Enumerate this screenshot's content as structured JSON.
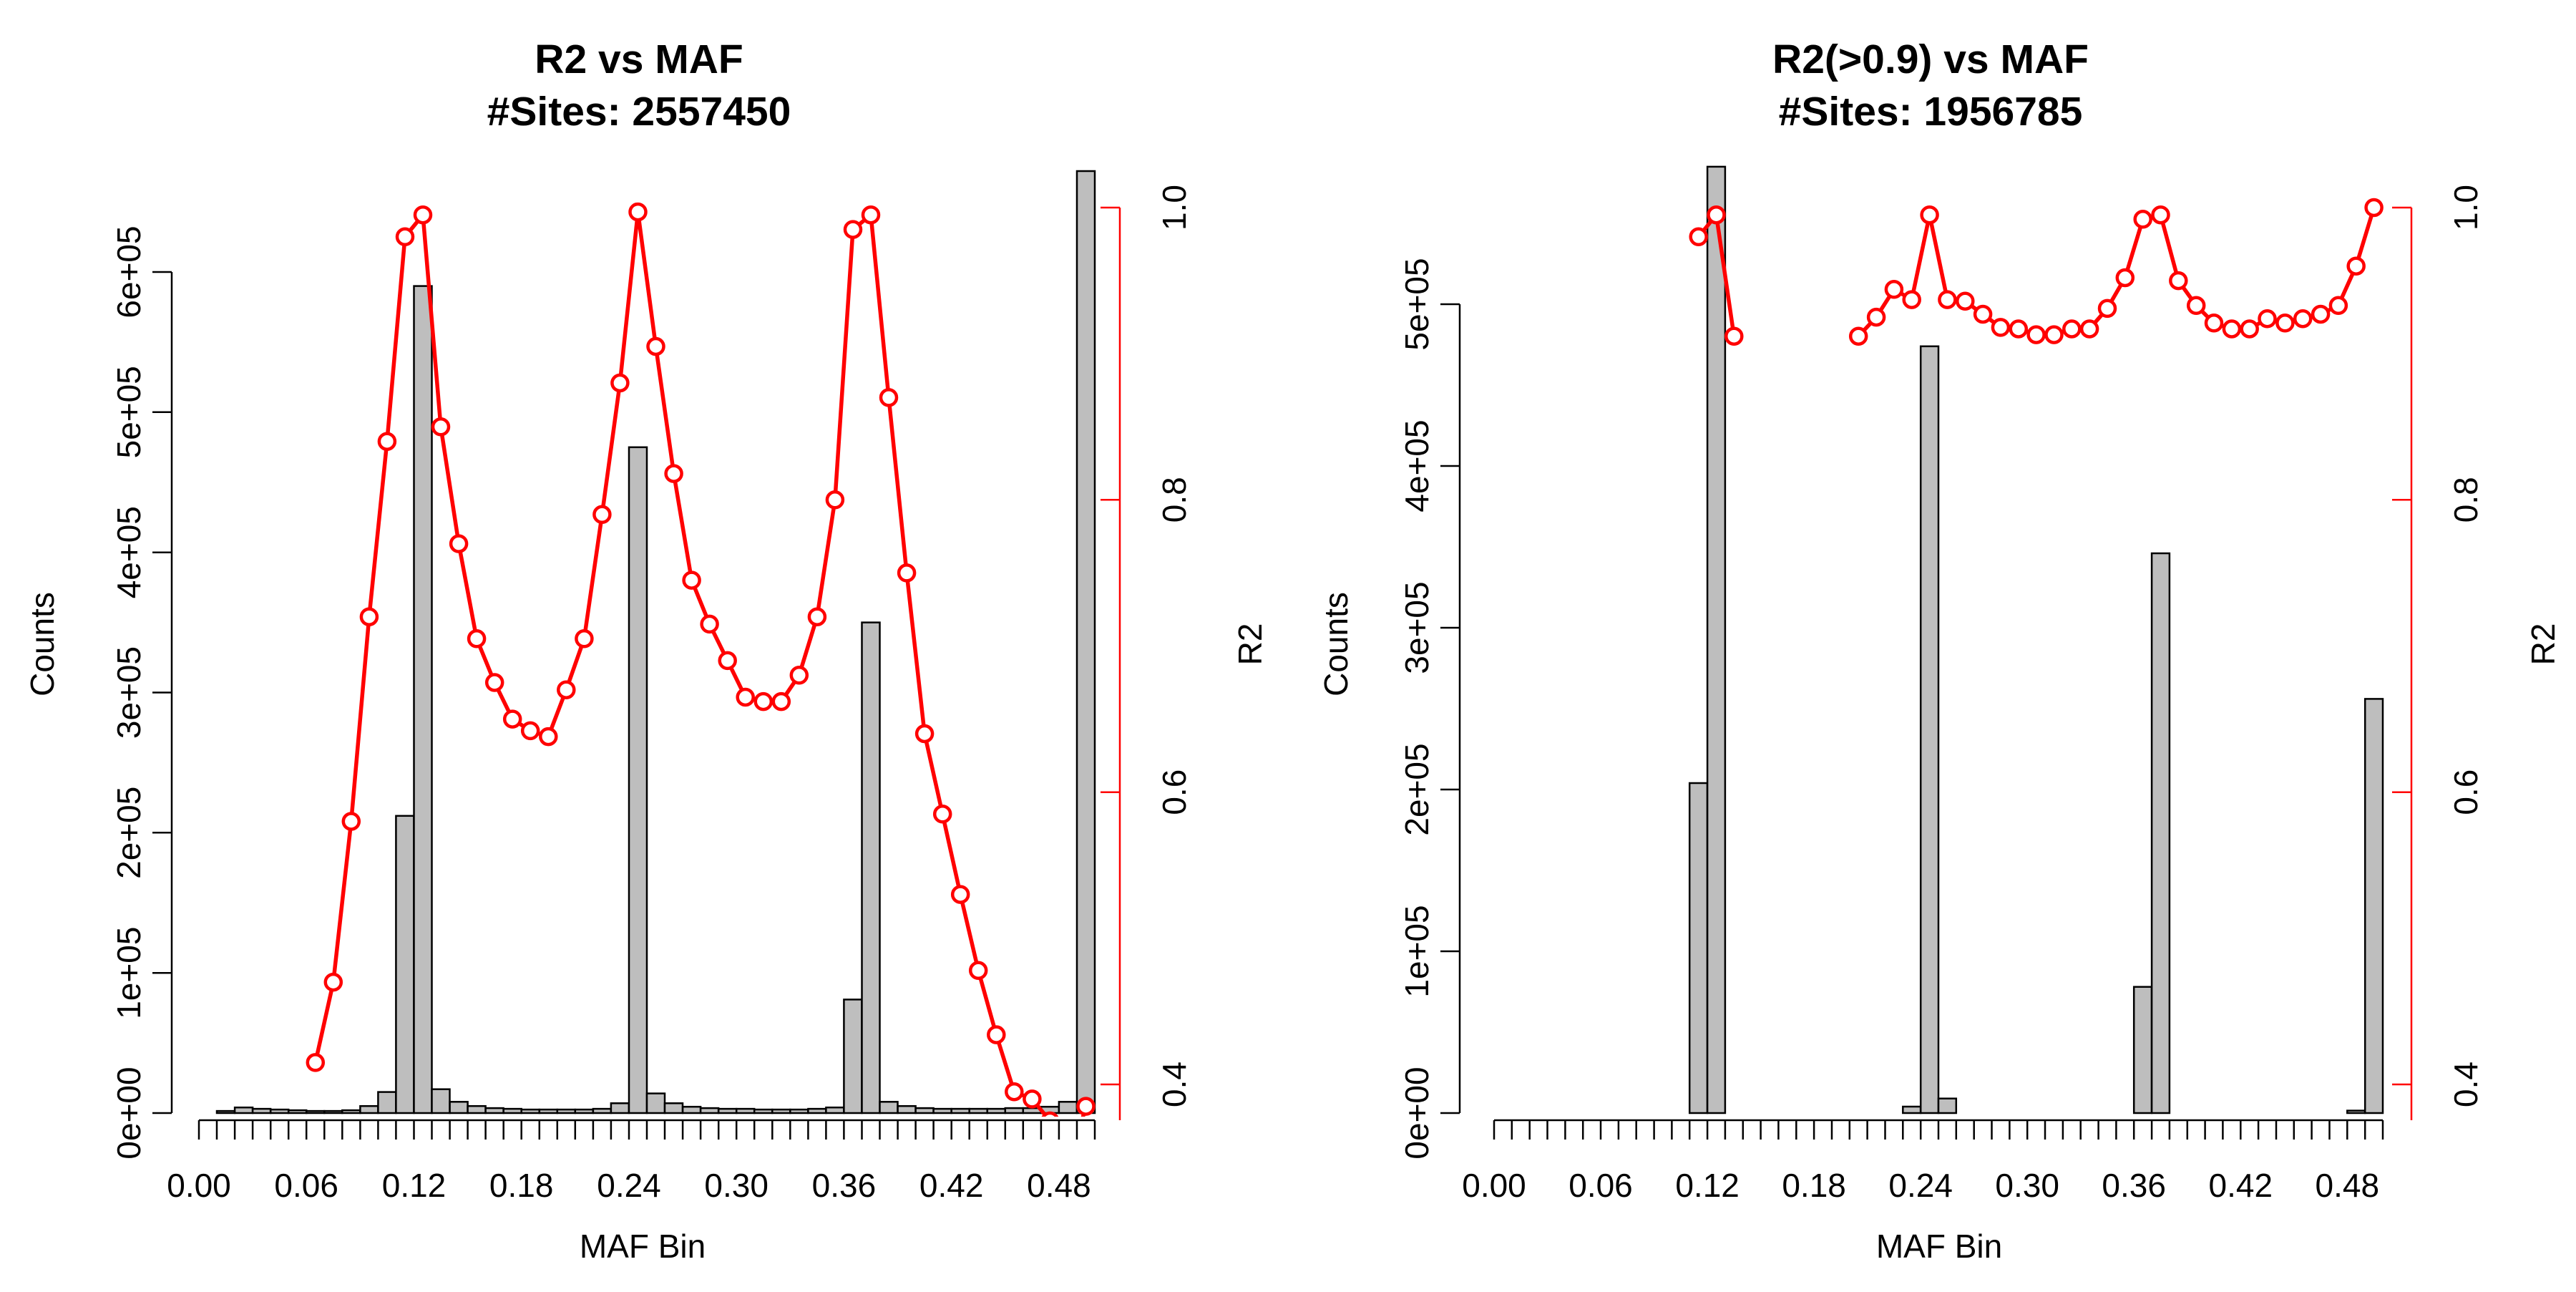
{
  "chart_data": [
    {
      "type": "bar",
      "title": "R2 vs MAF",
      "subtitle": "#Sites:  2557450",
      "xlabel": "MAF Bin",
      "ylabel": "Counts",
      "ylabel_right": "R2",
      "xlim": [
        0,
        0.5
      ],
      "ylim": [
        0,
        660000
      ],
      "y2lim": [
        0.38,
        1.0
      ],
      "x_ticks": [
        0.0,
        0.06,
        0.12,
        0.18,
        0.24,
        0.3,
        0.36,
        0.42,
        0.48
      ],
      "x_tick_labels": [
        "0.00",
        "0.06",
        "0.12",
        "0.18",
        "0.24",
        "0.30",
        "0.36",
        "0.42",
        "0.48"
      ],
      "y_ticks": [
        0,
        100000,
        200000,
        300000,
        400000,
        500000,
        600000
      ],
      "y_tick_labels": [
        "0e+00",
        "1e+05",
        "2e+05",
        "3e+05",
        "4e+05",
        "5e+05",
        "6e+05"
      ],
      "y2_ticks": [
        0.4,
        0.6,
        0.8,
        1.0
      ],
      "y2_tick_labels": [
        "0.4",
        "0.6",
        "0.8",
        "1.0"
      ],
      "bin_width": 0.01,
      "bar_color": "#bebebe",
      "line_color": "#ff0000",
      "bars": {
        "name": "Counts",
        "x": [
          0.0,
          0.01,
          0.02,
          0.03,
          0.04,
          0.05,
          0.06,
          0.07,
          0.08,
          0.09,
          0.1,
          0.11,
          0.12,
          0.13,
          0.14,
          0.15,
          0.16,
          0.17,
          0.18,
          0.19,
          0.2,
          0.21,
          0.22,
          0.23,
          0.24,
          0.25,
          0.26,
          0.27,
          0.28,
          0.29,
          0.3,
          0.31,
          0.32,
          0.33,
          0.34,
          0.35,
          0.36,
          0.37,
          0.38,
          0.39,
          0.4,
          0.41,
          0.42,
          0.43,
          0.44,
          0.45,
          0.46,
          0.47,
          0.48,
          0.49
        ],
        "values": [
          0,
          1500,
          4000,
          3000,
          2500,
          2000,
          1500,
          1500,
          2000,
          5000,
          15000,
          212000,
          590000,
          17000,
          8000,
          5000,
          3500,
          3000,
          2500,
          2500,
          2500,
          2500,
          3000,
          7000,
          475000,
          14000,
          7000,
          4500,
          3500,
          3000,
          3000,
          2500,
          2500,
          2500,
          3000,
          4000,
          81000,
          350000,
          8000,
          5000,
          3500,
          3000,
          3000,
          3000,
          3000,
          3500,
          3500,
          4500,
          8000,
          672000
        ]
      },
      "r2_line": {
        "name": "R2",
        "x": [
          0.06,
          0.07,
          0.08,
          0.09,
          0.1,
          0.11,
          0.12,
          0.13,
          0.14,
          0.15,
          0.16,
          0.17,
          0.18,
          0.19,
          0.2,
          0.21,
          0.22,
          0.23,
          0.24,
          0.25,
          0.26,
          0.27,
          0.28,
          0.29,
          0.3,
          0.31,
          0.32,
          0.33,
          0.34,
          0.35,
          0.36,
          0.37,
          0.38,
          0.39,
          0.4,
          0.41,
          0.42,
          0.43,
          0.44,
          0.45,
          0.46,
          0.47,
          0.48,
          0.49
        ],
        "values": [
          0.415,
          0.47,
          0.58,
          0.72,
          0.84,
          0.98,
          0.995,
          0.85,
          0.77,
          0.705,
          0.675,
          0.65,
          0.642,
          0.638,
          0.67,
          0.705,
          0.79,
          0.88,
          0.997,
          0.905,
          0.818,
          0.745,
          0.715,
          0.69,
          0.665,
          0.662,
          0.662,
          0.68,
          0.72,
          0.8,
          0.985,
          0.995,
          0.87,
          0.75,
          0.64,
          0.585,
          0.53,
          0.478,
          0.434,
          0.395,
          0.39,
          0.375,
          0.34,
          0.385
        ]
      }
    },
    {
      "type": "bar",
      "title": "R2(>0.9) vs MAF",
      "subtitle": "#Sites:  1956785",
      "xlabel": "MAF Bin",
      "ylabel": "Counts",
      "ylabel_right": "R2",
      "xlim": [
        0,
        0.5
      ],
      "ylim": [
        0,
        585000
      ],
      "y2lim": [
        0.38,
        1.0
      ],
      "x_ticks": [
        0.0,
        0.06,
        0.12,
        0.18,
        0.24,
        0.3,
        0.36,
        0.42,
        0.48
      ],
      "x_tick_labels": [
        "0.00",
        "0.06",
        "0.12",
        "0.18",
        "0.24",
        "0.30",
        "0.36",
        "0.42",
        "0.48"
      ],
      "y_ticks": [
        0,
        100000,
        200000,
        300000,
        400000,
        500000
      ],
      "y_tick_labels": [
        "0e+00",
        "1e+05",
        "2e+05",
        "3e+05",
        "4e+05",
        "5e+05"
      ],
      "y2_ticks": [
        0.4,
        0.6,
        0.8,
        1.0
      ],
      "y2_tick_labels": [
        "0.4",
        "0.6",
        "0.8",
        "1.0"
      ],
      "bin_width": 0.01,
      "bar_color": "#bebebe",
      "line_color": "#ff0000",
      "bars": {
        "name": "Counts",
        "x": [
          0.0,
          0.01,
          0.02,
          0.03,
          0.04,
          0.05,
          0.06,
          0.07,
          0.08,
          0.09,
          0.1,
          0.11,
          0.12,
          0.13,
          0.14,
          0.15,
          0.16,
          0.17,
          0.18,
          0.19,
          0.2,
          0.21,
          0.22,
          0.23,
          0.24,
          0.25,
          0.26,
          0.27,
          0.28,
          0.29,
          0.3,
          0.31,
          0.32,
          0.33,
          0.34,
          0.35,
          0.36,
          0.37,
          0.38,
          0.39,
          0.4,
          0.41,
          0.42,
          0.43,
          0.44,
          0.45,
          0.46,
          0.47,
          0.48,
          0.49
        ],
        "values": [
          0,
          0,
          0,
          0,
          0,
          0,
          0,
          0,
          0,
          0,
          0,
          204000,
          585000,
          0,
          0,
          0,
          0,
          0,
          0,
          0,
          0,
          0,
          0,
          4000,
          474000,
          9000,
          0,
          0,
          0,
          0,
          0,
          0,
          0,
          0,
          0,
          0,
          78000,
          346000,
          0,
          0,
          0,
          0,
          0,
          0,
          0,
          0,
          0,
          0,
          1500,
          256000
        ]
      },
      "r2_line": {
        "name": "R2",
        "segments": [
          {
            "x": [
              0.11,
              0.12,
              0.13
            ],
            "values": [
              0.98,
              0.995,
              0.912
            ]
          },
          {
            "x": [
              0.2,
              0.21,
              0.22,
              0.23,
              0.24,
              0.25,
              0.26,
              0.27,
              0.28,
              0.29,
              0.3,
              0.31,
              0.32,
              0.33,
              0.34,
              0.35,
              0.36,
              0.37,
              0.38,
              0.39,
              0.4,
              0.41,
              0.42,
              0.43,
              0.44,
              0.45,
              0.46,
              0.47,
              0.48,
              0.49
            ],
            "values": [
              0.912,
              0.925,
              0.944,
              0.937,
              0.995,
              0.937,
              0.936,
              0.927,
              0.918,
              0.917,
              0.913,
              0.913,
              0.917,
              0.917,
              0.931,
              0.952,
              0.992,
              0.995,
              0.95,
              0.933,
              0.921,
              0.917,
              0.917,
              0.924,
              0.921,
              0.924,
              0.927,
              0.933,
              0.96,
              1.0
            ]
          }
        ]
      }
    }
  ]
}
